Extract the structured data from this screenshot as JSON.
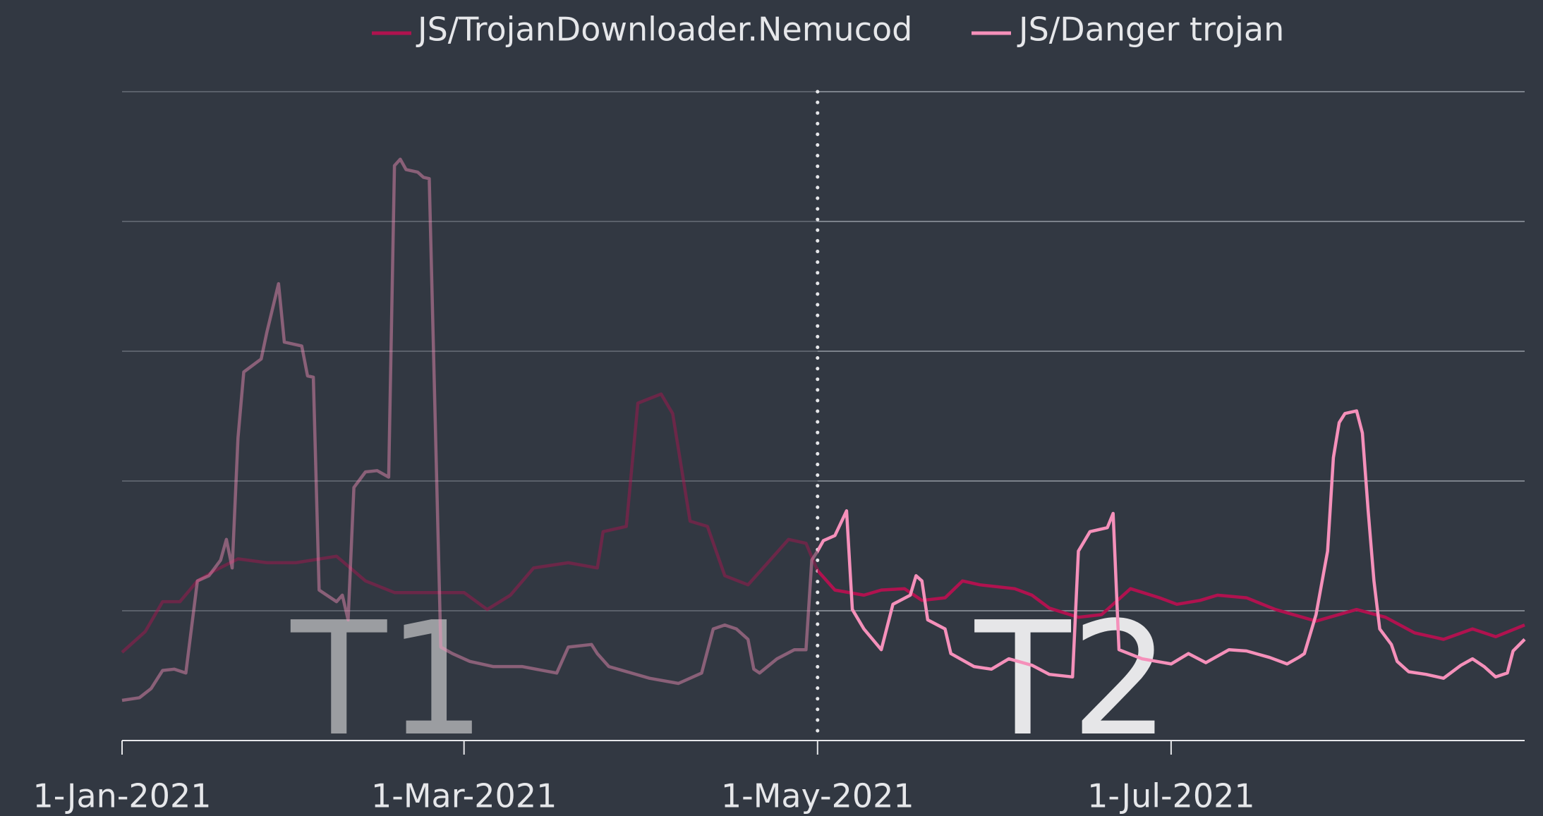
{
  "chart_data": {
    "type": "line",
    "xlim": [
      "2021-01-01",
      "2021-08-31"
    ],
    "xticks": [
      {
        "value": "2021-01-01",
        "label": "1-Jan-2021"
      },
      {
        "value": "2021-03-01",
        "label": "1-Mar-2021"
      },
      {
        "value": "2021-05-01",
        "label": "1-May-2021"
      },
      {
        "value": "2021-07-01",
        "label": "1-Jul-2021"
      }
    ],
    "ylim": [
      0,
      5
    ],
    "yticks": [
      0,
      1,
      2,
      3,
      4,
      5
    ],
    "grid": true,
    "legend": "top",
    "vline": "2021-05-01",
    "annotations": [
      {
        "text": "T1",
        "x": "2021-02-16",
        "color": "#9b9da1"
      },
      {
        "text": "T2",
        "x": "2021-06-14",
        "color": "#e6e6e8"
      }
    ],
    "series": [
      {
        "name": "JS/TrojanDownloader.Nemucod",
        "color": "#b0124f",
        "x": [
          "2021-01-01",
          "2021-01-05",
          "2021-01-08",
          "2021-01-11",
          "2021-01-14",
          "2021-01-17",
          "2021-01-21",
          "2021-01-26",
          "2021-01-31",
          "2021-02-07",
          "2021-02-12",
          "2021-02-17",
          "2021-02-24",
          "2021-03-01",
          "2021-03-05",
          "2021-03-09",
          "2021-03-13",
          "2021-03-19",
          "2021-03-24",
          "2021-03-25",
          "2021-03-29",
          "2021-03-31",
          "2021-04-04",
          "2021-04-06",
          "2021-04-09",
          "2021-04-12",
          "2021-04-15",
          "2021-04-19",
          "2021-04-22",
          "2021-04-26",
          "2021-04-29",
          "2021-05-01",
          "2021-05-04",
          "2021-05-09",
          "2021-05-12",
          "2021-05-16",
          "2021-05-19",
          "2021-05-23",
          "2021-05-26",
          "2021-05-29",
          "2021-06-04",
          "2021-06-07",
          "2021-06-10",
          "2021-06-15",
          "2021-06-19",
          "2021-06-24",
          "2021-06-29",
          "2021-07-02",
          "2021-07-06",
          "2021-07-09",
          "2021-07-14",
          "2021-07-19",
          "2021-07-26",
          "2021-08-02",
          "2021-08-07",
          "2021-08-12",
          "2021-08-17",
          "2021-08-22",
          "2021-08-26",
          "2021-08-31"
        ],
        "values": [
          0.68,
          0.84,
          1.07,
          1.07,
          1.23,
          1.31,
          1.4,
          1.37,
          1.37,
          1.42,
          1.23,
          1.14,
          1.14,
          1.14,
          1.01,
          1.12,
          1.33,
          1.37,
          1.33,
          1.61,
          1.65,
          2.6,
          2.67,
          2.52,
          1.69,
          1.65,
          1.27,
          1.2,
          1.35,
          1.55,
          1.52,
          1.31,
          1.16,
          1.12,
          1.16,
          1.17,
          1.08,
          1.1,
          1.23,
          1.2,
          1.17,
          1.12,
          1.02,
          0.95,
          0.97,
          1.17,
          1.1,
          1.05,
          1.08,
          1.12,
          1.1,
          1.01,
          0.92,
          1.01,
          0.95,
          0.83,
          0.78,
          0.86,
          0.8,
          0.89
        ]
      },
      {
        "name": "JS/Danger trojan",
        "color": "#f590ba",
        "x": [
          "2021-01-01",
          "2021-01-04",
          "2021-01-06",
          "2021-01-08",
          "2021-01-10",
          "2021-01-12",
          "2021-01-14",
          "2021-01-16",
          "2021-01-18",
          "2021-01-19",
          "2021-01-20",
          "2021-01-21",
          "2021-01-22",
          "2021-01-25",
          "2021-01-26",
          "2021-01-28",
          "2021-01-29",
          "2021-02-01",
          "2021-02-02",
          "2021-02-03",
          "2021-02-04",
          "2021-02-07",
          "2021-02-08",
          "2021-02-09",
          "2021-02-10",
          "2021-02-12",
          "2021-02-14",
          "2021-02-16",
          "2021-02-17",
          "2021-02-18",
          "2021-02-19",
          "2021-02-21",
          "2021-02-22",
          "2021-02-23",
          "2021-02-25",
          "2021-02-27",
          "2021-03-02",
          "2021-03-06",
          "2021-03-11",
          "2021-03-17",
          "2021-03-19",
          "2021-03-23",
          "2021-03-24",
          "2021-03-26",
          "2021-04-02",
          "2021-04-07",
          "2021-04-11",
          "2021-04-13",
          "2021-04-15",
          "2021-04-17",
          "2021-04-19",
          "2021-04-20",
          "2021-04-21",
          "2021-04-24",
          "2021-04-27",
          "2021-04-29",
          "2021-04-30",
          "2021-05-01",
          "2021-05-02",
          "2021-05-04",
          "2021-05-06",
          "2021-05-07",
          "2021-05-09",
          "2021-05-12",
          "2021-05-14",
          "2021-05-17",
          "2021-05-18",
          "2021-05-19",
          "2021-05-20",
          "2021-05-23",
          "2021-05-24",
          "2021-05-28",
          "2021-05-31",
          "2021-06-03",
          "2021-06-07",
          "2021-06-10",
          "2021-06-14",
          "2021-06-15",
          "2021-06-17",
          "2021-06-20",
          "2021-06-21",
          "2021-06-22",
          "2021-06-26",
          "2021-07-01",
          "2021-07-04",
          "2021-07-07",
          "2021-07-11",
          "2021-07-14",
          "2021-07-18",
          "2021-07-21",
          "2021-07-23",
          "2021-07-24",
          "2021-07-26",
          "2021-07-28",
          "2021-07-29",
          "2021-07-30",
          "2021-07-31",
          "2021-08-02",
          "2021-08-03",
          "2021-08-04",
          "2021-08-05",
          "2021-08-06",
          "2021-08-08",
          "2021-08-09",
          "2021-08-11",
          "2021-08-14",
          "2021-08-17",
          "2021-08-20",
          "2021-08-22",
          "2021-08-24",
          "2021-08-26",
          "2021-08-28",
          "2021-08-29",
          "2021-08-31"
        ],
        "values": [
          0.31,
          0.33,
          0.4,
          0.54,
          0.55,
          0.52,
          1.23,
          1.27,
          1.39,
          1.55,
          1.33,
          2.33,
          2.84,
          2.94,
          3.15,
          3.52,
          3.07,
          3.04,
          2.81,
          2.8,
          1.16,
          1.07,
          1.12,
          0.93,
          1.95,
          2.07,
          2.08,
          2.03,
          4.43,
          4.48,
          4.4,
          4.38,
          4.34,
          4.33,
          0.72,
          0.67,
          0.61,
          0.57,
          0.57,
          0.52,
          0.72,
          0.74,
          0.67,
          0.57,
          0.48,
          0.44,
          0.52,
          0.86,
          0.89,
          0.86,
          0.78,
          0.55,
          0.52,
          0.63,
          0.7,
          0.7,
          1.39,
          1.46,
          1.54,
          1.58,
          1.77,
          1.01,
          0.86,
          0.7,
          1.05,
          1.12,
          1.27,
          1.23,
          0.93,
          0.86,
          0.67,
          0.57,
          0.55,
          0.63,
          0.58,
          0.51,
          0.49,
          1.46,
          1.61,
          1.64,
          1.75,
          0.7,
          0.63,
          0.59,
          0.67,
          0.6,
          0.7,
          0.69,
          0.64,
          0.59,
          0.64,
          0.67,
          0.97,
          1.46,
          2.18,
          2.45,
          2.52,
          2.54,
          2.37,
          1.77,
          1.23,
          0.86,
          0.74,
          0.61,
          0.53,
          0.51,
          0.48,
          0.58,
          0.63,
          0.57,
          0.49,
          0.52,
          0.69,
          0.78
        ]
      }
    ]
  }
}
